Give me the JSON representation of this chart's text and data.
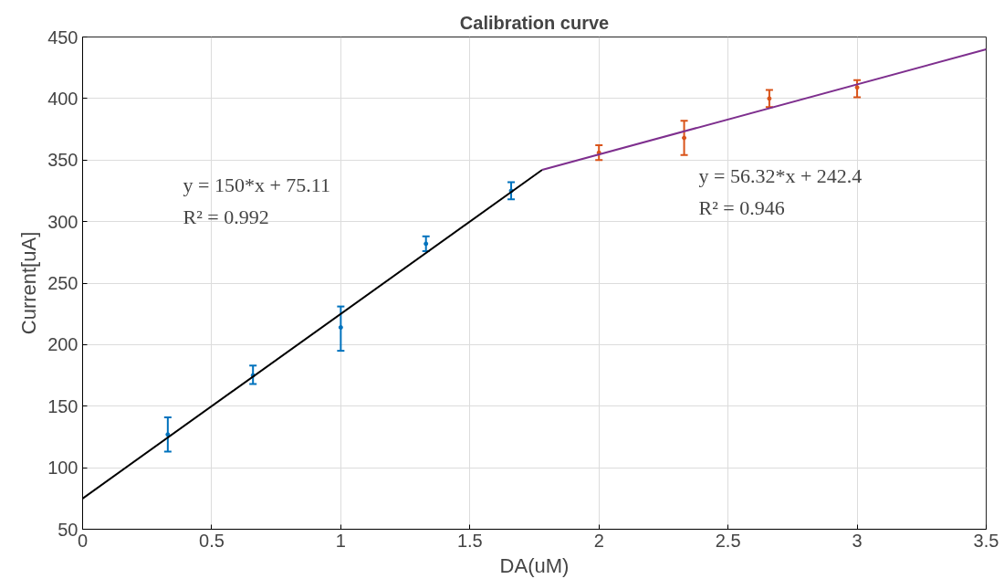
{
  "chart_data": {
    "type": "scatter",
    "title": "Calibration curve",
    "xlabel": "DA(uM)",
    "ylabel": "Current[uA]",
    "xlim": [
      0,
      3.5
    ],
    "ylim": [
      50,
      450
    ],
    "xticks": [
      0,
      0.5,
      1,
      1.5,
      2,
      2.5,
      3,
      3.5
    ],
    "yticks": [
      50,
      100,
      150,
      200,
      250,
      300,
      350,
      400,
      450
    ],
    "grid": true,
    "series": [
      {
        "marker": "circle",
        "color": "#0072bd",
        "x": [
          0.33,
          0.66,
          1.0,
          1.33,
          1.66
        ],
        "values": [
          127,
          175,
          214,
          282,
          325
        ],
        "errors": [
          [
            113,
            141
          ],
          [
            168,
            183
          ],
          [
            195,
            231
          ],
          [
            276,
            288
          ],
          [
            318,
            332
          ]
        ]
      },
      {
        "marker": "circle",
        "color": "#d95319",
        "x": [
          2.0,
          2.33,
          2.66,
          3.0
        ],
        "values": [
          356,
          368,
          400,
          409
        ],
        "errors": [
          [
            350,
            362
          ],
          [
            354,
            382
          ],
          [
            393,
            407
          ],
          [
            401,
            415
          ]
        ]
      },
      {
        "type": "line",
        "color": "#000000",
        "x": [
          0,
          1.78
        ],
        "values": [
          75,
          342
        ]
      },
      {
        "type": "line",
        "color": "#7e2f8e",
        "x": [
          1.78,
          3.5
        ],
        "values": [
          342,
          440
        ]
      }
    ],
    "annotations": [
      "y = 150*x + 75.11",
      "R² = 0.992",
      "y = 56.32*x + 242.4",
      "R² = 0.946"
    ]
  }
}
